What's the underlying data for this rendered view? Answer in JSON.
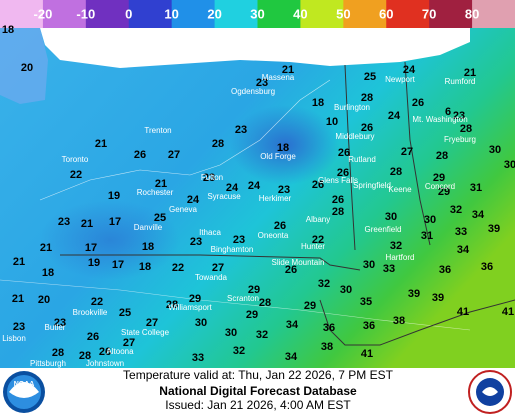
{
  "colorbar": {
    "ticks": [
      -20,
      -10,
      0,
      10,
      20,
      30,
      40,
      50,
      60,
      70,
      80
    ],
    "colors": [
      "#f0b8f0",
      "#c070e0",
      "#7030c0",
      "#3040d0",
      "#2090e8",
      "#20d0e0",
      "#20c840",
      "#c0e820",
      "#f0a020",
      "#e03020",
      "#a02040",
      "#e0a0b0"
    ]
  },
  "temperatures": [
    18,
    20,
    21,
    23,
    25,
    24,
    21,
    28,
    18,
    26,
    6,
    24,
    23,
    10,
    26,
    28,
    21,
    23,
    28,
    26,
    27,
    18,
    26,
    27,
    28,
    30,
    30,
    22,
    21,
    23,
    26,
    28,
    29,
    31,
    19,
    24,
    24,
    23,
    26,
    29,
    24,
    26,
    28,
    32,
    34,
    23,
    21,
    17,
    25,
    30,
    30,
    26,
    33,
    39,
    21,
    17,
    18,
    23,
    23,
    22,
    31,
    32,
    34,
    21,
    19,
    17,
    18,
    22,
    27,
    26,
    30,
    33,
    36,
    36,
    18,
    32,
    29,
    30,
    39,
    39,
    21,
    20,
    22,
    29,
    28,
    28,
    29,
    35,
    41,
    41,
    25,
    29,
    38,
    23,
    23,
    27,
    30,
    34,
    36,
    36,
    26,
    30,
    32,
    27,
    38,
    32,
    26,
    28,
    28,
    41,
    33,
    34
  ],
  "places": [
    "Massena",
    "Ogdensburg",
    "Trenton",
    "Toronto",
    "Rochester",
    "Fulton",
    "Syracuse",
    "Geneva",
    "Danville",
    "Ithaca",
    "Binghamton",
    "Oneonta",
    "Herkimer",
    "Old Forge",
    "Glens Falls",
    "Albany",
    "Hunter",
    "Slide Mountain",
    "Towanda",
    "Scranton",
    "Williamsport",
    "Brookville",
    "Butler",
    "State College",
    "Altoona",
    "Johnstown",
    "Pittsburgh",
    "Burlington",
    "Middlebury",
    "Rutland",
    "Newport",
    "Rumford",
    "Mt. Washington",
    "Fryeburg",
    "Keene",
    "Springfield",
    "Concord",
    "Greenfield",
    "Hartford",
    "Lisbon"
  ],
  "footer": {
    "valid": "Temperature valid at: Thu, Jan 22 2026, 7 PM EST",
    "title": "National Digital Forecast Database",
    "issued": "Issued: Jan 21 2026, 4:00 AM EST"
  },
  "logos": {
    "noaa": "NOAA"
  }
}
